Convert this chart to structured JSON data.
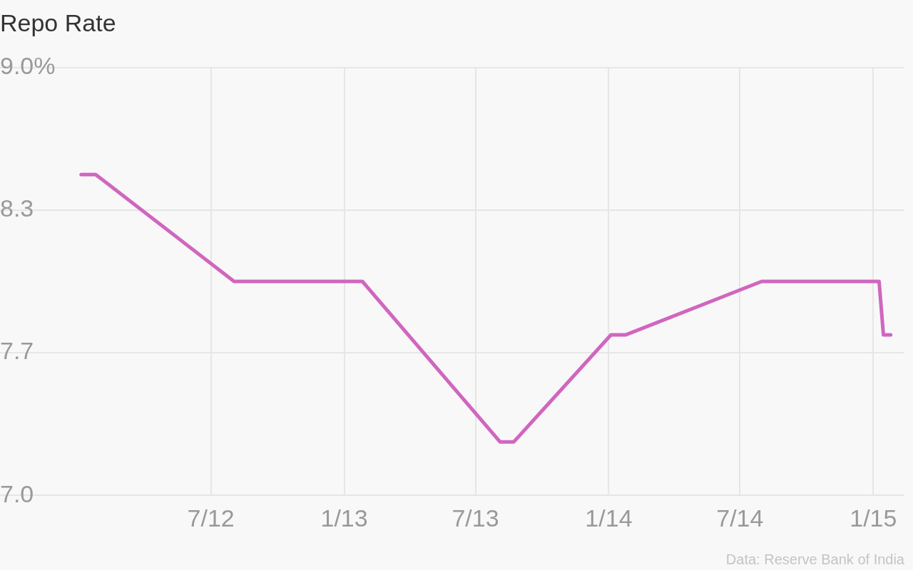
{
  "chart_data": {
    "type": "line",
    "title": "Repo Rate",
    "x": [
      "2012-01-04",
      "2012-01-24",
      "2012-08-02",
      "2013-01-26",
      "2013-08-04",
      "2013-08-23",
      "2014-01-04",
      "2014-01-24",
      "2014-07-31",
      "2015-01-09",
      "2015-01-15",
      "2015-01-25"
    ],
    "series": [
      {
        "color": "#d066bf",
        "values": [
          8.5,
          8.5,
          8.0,
          8.0,
          7.25,
          7.25,
          7.75,
          7.75,
          8.0,
          8.0,
          7.75,
          7.75
        ]
      }
    ],
    "xlim": [
      "2011-09-14",
      "2015-02-13"
    ],
    "xticks": [
      {
        "value": "2012-07-01",
        "label": "7/12"
      },
      {
        "value": "2013-01-01",
        "label": "1/13"
      },
      {
        "value": "2013-07-01",
        "label": "7/13"
      },
      {
        "value": "2014-01-01",
        "label": "1/14"
      },
      {
        "value": "2014-07-01",
        "label": "7/14"
      },
      {
        "value": "2015-01-01",
        "label": "1/15"
      }
    ],
    "ylim": [
      7.0,
      9.0
    ],
    "yticks": [
      {
        "value": 7.0,
        "label": "7.0"
      },
      {
        "value": 7.6667,
        "label": "7.7"
      },
      {
        "value": 8.3333,
        "label": "8.3"
      },
      {
        "value": 9.0,
        "label": "9.0%"
      }
    ],
    "grid": true,
    "legend": false,
    "marker": "none",
    "line_style": "solid",
    "annotations": [
      "Data: Reserve Bank of India"
    ]
  }
}
